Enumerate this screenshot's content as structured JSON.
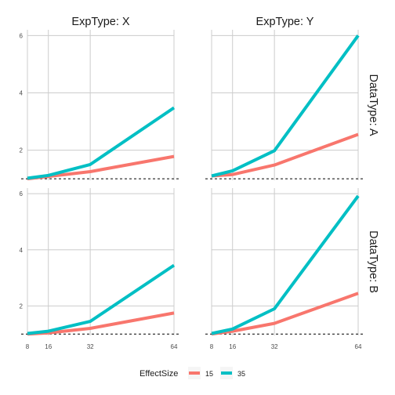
{
  "chart_data": {
    "type": "line",
    "facet_cols": [
      "ExpType: X",
      "ExpType: Y"
    ],
    "facet_rows": [
      "DataType: A",
      "DataType: B"
    ],
    "x": [
      8,
      16,
      32,
      64
    ],
    "x_ticks": [
      "8",
      "16",
      "32",
      "64"
    ],
    "y_ticks": [
      "2",
      "4",
      "6"
    ],
    "xlim": [
      8,
      64
    ],
    "ylim": [
      0.95,
      6.2
    ],
    "reference_line": {
      "y": 1,
      "style": "dashed"
    },
    "grid": true,
    "legend": {
      "title": "EffectSize",
      "position": "bottom",
      "entries": [
        {
          "label": "15",
          "color": "#F8766D"
        },
        {
          "label": "35",
          "color": "#00BFC4"
        }
      ]
    },
    "panels": [
      {
        "row": "DataType: A",
        "col": "ExpType: X",
        "series": [
          {
            "name": "15",
            "color": "#F8766D",
            "values": [
              1.0,
              1.08,
              1.25,
              1.78
            ]
          },
          {
            "name": "35",
            "color": "#00BFC4",
            "values": [
              1.02,
              1.12,
              1.5,
              3.48
            ]
          }
        ]
      },
      {
        "row": "DataType: A",
        "col": "ExpType: Y",
        "series": [
          {
            "name": "15",
            "color": "#F8766D",
            "values": [
              1.1,
              1.15,
              1.48,
              2.55
            ]
          },
          {
            "name": "35",
            "color": "#00BFC4",
            "values": [
              1.1,
              1.28,
              1.98,
              6.0
            ]
          }
        ]
      },
      {
        "row": "DataType: B",
        "col": "ExpType: X",
        "series": [
          {
            "name": "15",
            "color": "#F8766D",
            "values": [
              1.0,
              1.04,
              1.2,
              1.75
            ]
          },
          {
            "name": "35",
            "color": "#00BFC4",
            "values": [
              1.02,
              1.1,
              1.45,
              3.45
            ]
          }
        ]
      },
      {
        "row": "DataType: B",
        "col": "ExpType: Y",
        "series": [
          {
            "name": "15",
            "color": "#F8766D",
            "values": [
              1.0,
              1.1,
              1.38,
              2.45
            ]
          },
          {
            "name": "35",
            "color": "#00BFC4",
            "values": [
              1.02,
              1.18,
              1.9,
              5.92
            ]
          }
        ]
      }
    ]
  }
}
